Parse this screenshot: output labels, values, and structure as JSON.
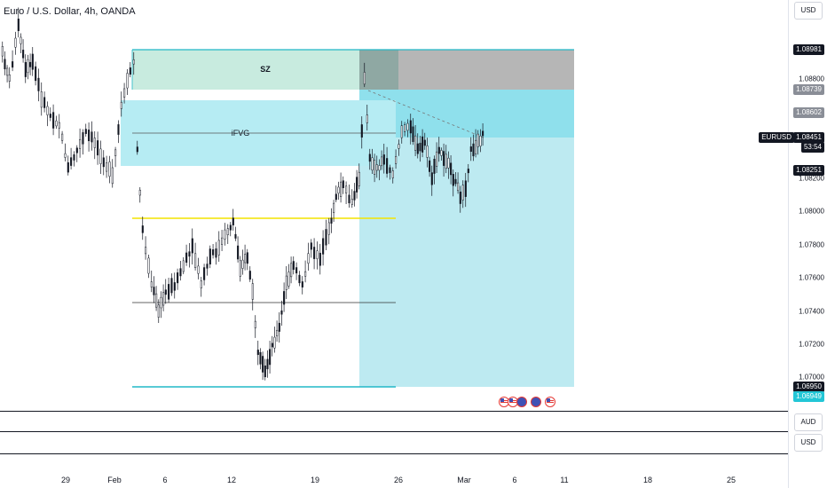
{
  "header": {
    "title": "Euro / U.S. Dollar, 4h, OANDA"
  },
  "price_axis": {
    "currency_label": "USD",
    "ticks": [
      "1.08800",
      "1.08200",
      "1.08000",
      "1.07800",
      "1.07600",
      "1.07400",
      "1.07200",
      "1.07000"
    ],
    "tags": {
      "top_zone": "1.08981",
      "zone_top2": "1.08739",
      "zone_mid": "1.08602",
      "symbol": "EURUSD",
      "current": "1.08451",
      "countdown": "53:54",
      "stop": "1.08251",
      "low1": "1.06950",
      "low2": "1.06949"
    }
  },
  "panes": {
    "pane1_label": "AUD",
    "pane2_label": "USD"
  },
  "time_axis": {
    "ticks": [
      "29",
      "Feb",
      "6",
      "12",
      "19",
      "26",
      "Mar",
      "6",
      "11",
      "18",
      "25"
    ]
  },
  "annotations": {
    "sz_label": "SZ",
    "ifvg_label": "iFVG"
  },
  "colors": {
    "up": "#131722",
    "down": "#131722",
    "sz_fill": "#c8ebdf",
    "ifvg_fill": "#b6ecf3",
    "grey": "#b6b6b6",
    "target_fill": "#bdeaf1",
    "cyan": "#22b8c7",
    "yellow": "#f4e300",
    "current_tag": "#131722",
    "cyan_tag": "#22c6d6"
  },
  "events": {
    "icons": [
      "us-flag-icon",
      "us-flag-icon",
      "eu-flag-icon",
      "eu-flag-icon",
      "us-flag-icon"
    ]
  }
}
